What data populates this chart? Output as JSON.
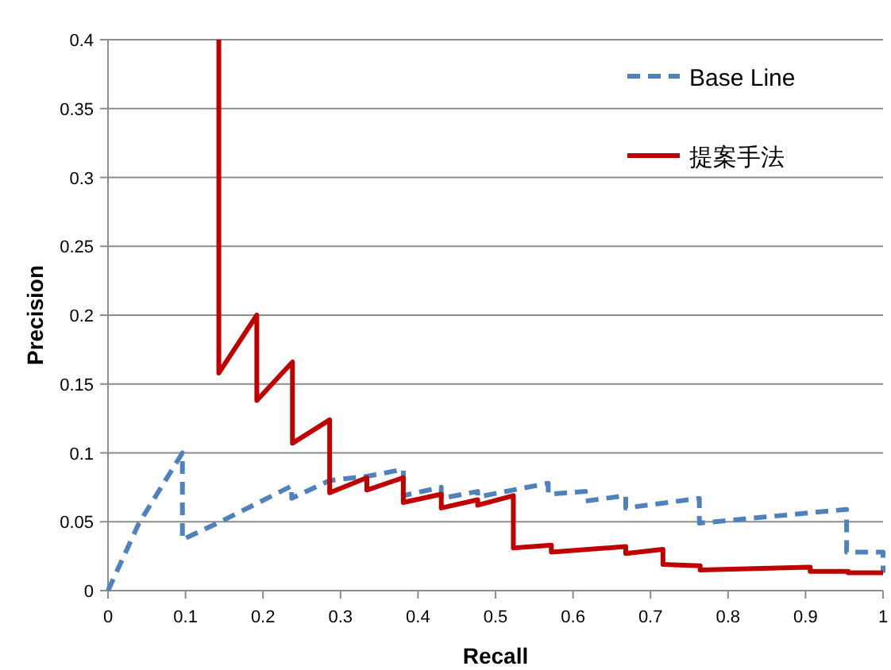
{
  "chart_data": {
    "type": "line",
    "xlabel": "Recall",
    "ylabel": "Precision",
    "xlim": [
      0,
      1
    ],
    "ylim": [
      0,
      0.4
    ],
    "xticks": [
      0,
      0.1,
      0.2,
      0.3,
      0.4,
      0.5,
      0.6,
      0.7,
      0.8,
      0.9,
      1
    ],
    "yticks": [
      0,
      0.05,
      0.1,
      0.15,
      0.2,
      0.25,
      0.3,
      0.35,
      0.4
    ],
    "grid": "y",
    "legend": "top right",
    "marker": "none",
    "series": [
      {
        "name": "Base Line",
        "color": "#4f81bd",
        "line_style": "dashed",
        "x": [
          0,
          0.04,
          0.096,
          0.096,
          0.145,
          0.237,
          0.237,
          0.286,
          0.334,
          0.381,
          0.381,
          0.43,
          0.43,
          0.477,
          0.477,
          0.568,
          0.568,
          0.616,
          0.616,
          0.668,
          0.668,
          0.763,
          0.763,
          0.953,
          0.953,
          1,
          1
        ],
        "values": [
          0,
          0.049,
          0.1,
          0.037,
          0.05,
          0.076,
          0.067,
          0.08,
          0.083,
          0.088,
          0.069,
          0.075,
          0.067,
          0.072,
          0.068,
          0.078,
          0.07,
          0.072,
          0.065,
          0.069,
          0.06,
          0.067,
          0.049,
          0.059,
          0.028,
          0.028,
          0.013
        ]
      },
      {
        "name": "提案手法",
        "color": "#c00000",
        "line_style": "solid",
        "x": [
          0.143,
          0.143,
          0.192,
          0.192,
          0.238,
          0.238,
          0.286,
          0.286,
          0.334,
          0.334,
          0.381,
          0.381,
          0.43,
          0.43,
          0.477,
          0.477,
          0.523,
          0.523,
          0.572,
          0.572,
          0.668,
          0.668,
          0.716,
          0.716,
          0.764,
          0.764,
          0.906,
          0.906,
          0.955,
          0.955,
          1
        ],
        "values": [
          0.4,
          0.158,
          0.2,
          0.138,
          0.166,
          0.107,
          0.124,
          0.071,
          0.082,
          0.073,
          0.082,
          0.064,
          0.07,
          0.06,
          0.066,
          0.062,
          0.069,
          0.031,
          0.033,
          0.028,
          0.032,
          0.027,
          0.03,
          0.019,
          0.018,
          0.015,
          0.017,
          0.014,
          0.014,
          0.013,
          0.013
        ]
      }
    ]
  }
}
